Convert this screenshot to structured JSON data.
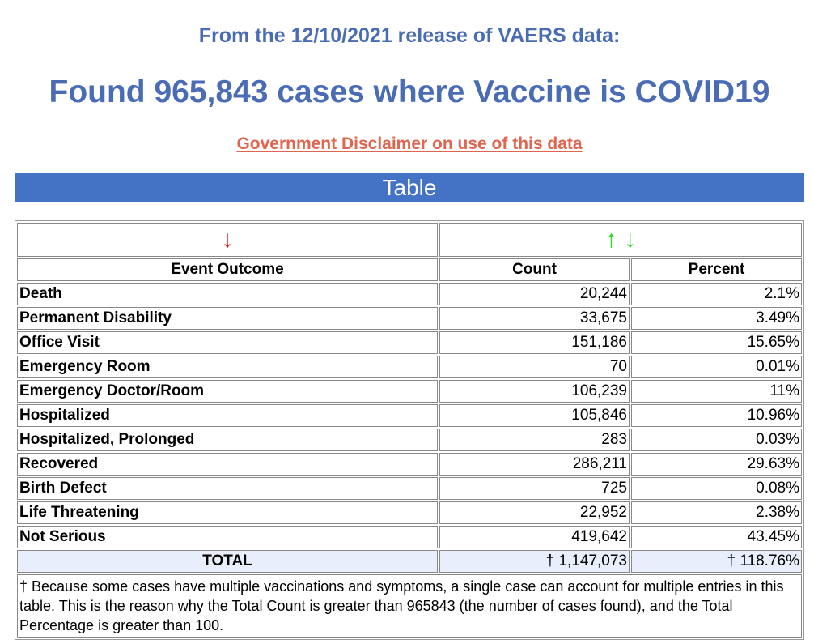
{
  "header": {
    "release_line": "From the 12/10/2021 release of VAERS data:",
    "found_line": "Found 965,843 cases where Vaccine is COVID19",
    "disclaimer_link": "Government Disclaimer on use of this data"
  },
  "section_title": "Table",
  "colors": {
    "title": "#4a6cb5",
    "link": "#e0654f",
    "bar": "#4472c4",
    "sort_red": "#ee1111",
    "sort_green": "#22dd22"
  },
  "sort_icons": {
    "outcome": "↓",
    "count_up": "↑",
    "count_down": "↓"
  },
  "columns": [
    "Event Outcome",
    "Count",
    "Percent"
  ],
  "rows": [
    {
      "outcome": "Death",
      "count": "20,244",
      "percent": "2.1%"
    },
    {
      "outcome": "Permanent Disability",
      "count": "33,675",
      "percent": "3.49%"
    },
    {
      "outcome": "Office Visit",
      "count": "151,186",
      "percent": "15.65%"
    },
    {
      "outcome": "Emergency Room",
      "count": "70",
      "percent": "0.01%"
    },
    {
      "outcome": "Emergency Doctor/Room",
      "count": "106,239",
      "percent": "11%"
    },
    {
      "outcome": "Hospitalized",
      "count": "105,846",
      "percent": "10.96%"
    },
    {
      "outcome": "Hospitalized, Prolonged",
      "count": "283",
      "percent": "0.03%"
    },
    {
      "outcome": "Recovered",
      "count": "286,211",
      "percent": "29.63%"
    },
    {
      "outcome": "Birth Defect",
      "count": "725",
      "percent": "0.08%"
    },
    {
      "outcome": "Life Threatening",
      "count": "22,952",
      "percent": "2.38%"
    },
    {
      "outcome": "Not Serious",
      "count": "419,642",
      "percent": "43.45%"
    }
  ],
  "total": {
    "label": "TOTAL",
    "count": "† 1,147,073",
    "percent": "† 118.76%"
  },
  "footnote": "† Because some cases have multiple vaccinations and symptoms, a single case can account for multiple entries in this table. This is the reason why the Total Count is greater than 965843 (the number of cases found), and the Total Percentage is greater than 100."
}
